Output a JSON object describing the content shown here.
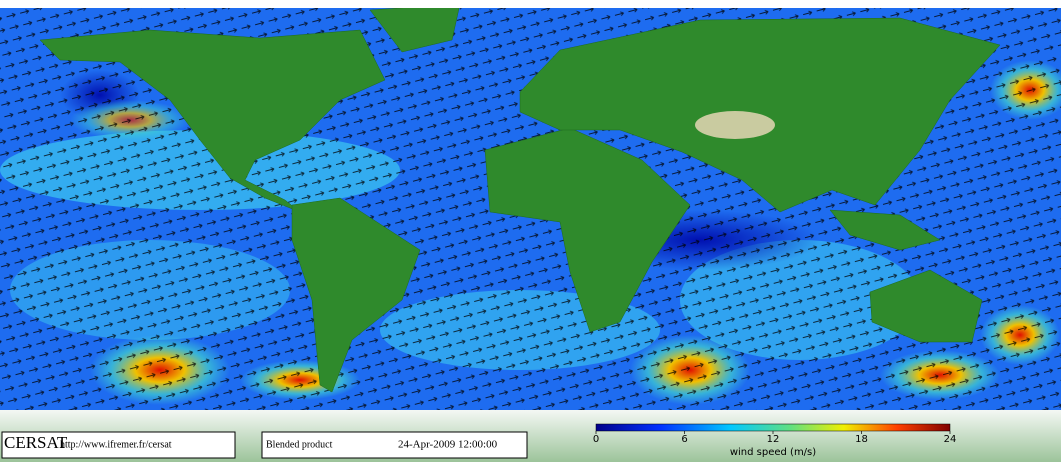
{
  "logo": "CERSAT",
  "url": "http://www.ifremer.fr/cersat",
  "product": "Blended product",
  "date": "24-Apr-2009 12:00:00",
  "colorbar": {
    "label": "wind speed (m/s)",
    "range": [
      0,
      24
    ],
    "ticks": [
      0,
      6,
      12,
      18,
      24
    ]
  }
}
